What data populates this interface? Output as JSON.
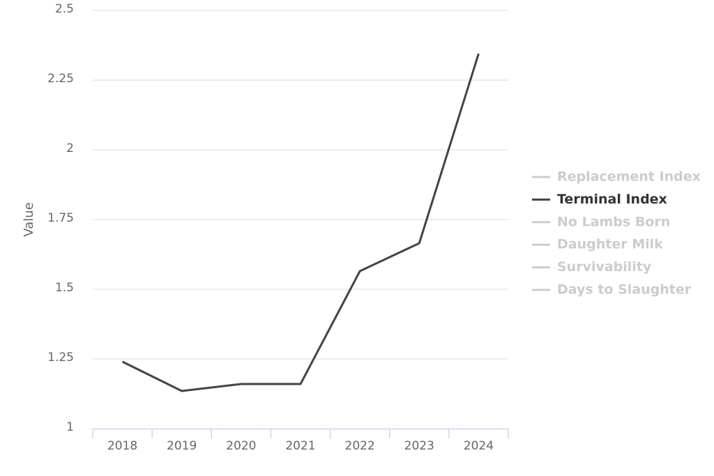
{
  "chart_data": {
    "type": "line",
    "y_label": "Value",
    "categories": [
      "2018",
      "2019",
      "2020",
      "2021",
      "2022",
      "2023",
      "2024"
    ],
    "series": [
      {
        "name": "Replacement Index",
        "color": "#cccccc",
        "visible": false,
        "values": [
          null,
          null,
          null,
          null,
          null,
          null,
          null
        ]
      },
      {
        "name": "Terminal Index",
        "color": "#434348",
        "visible": true,
        "values": [
          1.24,
          1.135,
          1.16,
          1.16,
          1.565,
          1.665,
          2.345
        ]
      },
      {
        "name": "No Lambs Born",
        "color": "#cccccc",
        "visible": false,
        "values": [
          null,
          null,
          null,
          null,
          null,
          null,
          null
        ]
      },
      {
        "name": "Daughter Milk",
        "color": "#cccccc",
        "visible": false,
        "values": [
          null,
          null,
          null,
          null,
          null,
          null,
          null
        ]
      },
      {
        "name": "Survivability",
        "color": "#cccccc",
        "visible": false,
        "values": [
          null,
          null,
          null,
          null,
          null,
          null,
          null
        ]
      },
      {
        "name": "Days to Slaughter",
        "color": "#cccccc",
        "visible": false,
        "values": [
          null,
          null,
          null,
          null,
          null,
          null,
          null
        ]
      }
    ],
    "ylim": [
      1,
      2.5
    ],
    "yticks": [
      1,
      1.25,
      1.5,
      1.75,
      2,
      2.25,
      2.5
    ],
    "grid": true,
    "legend": "right"
  }
}
